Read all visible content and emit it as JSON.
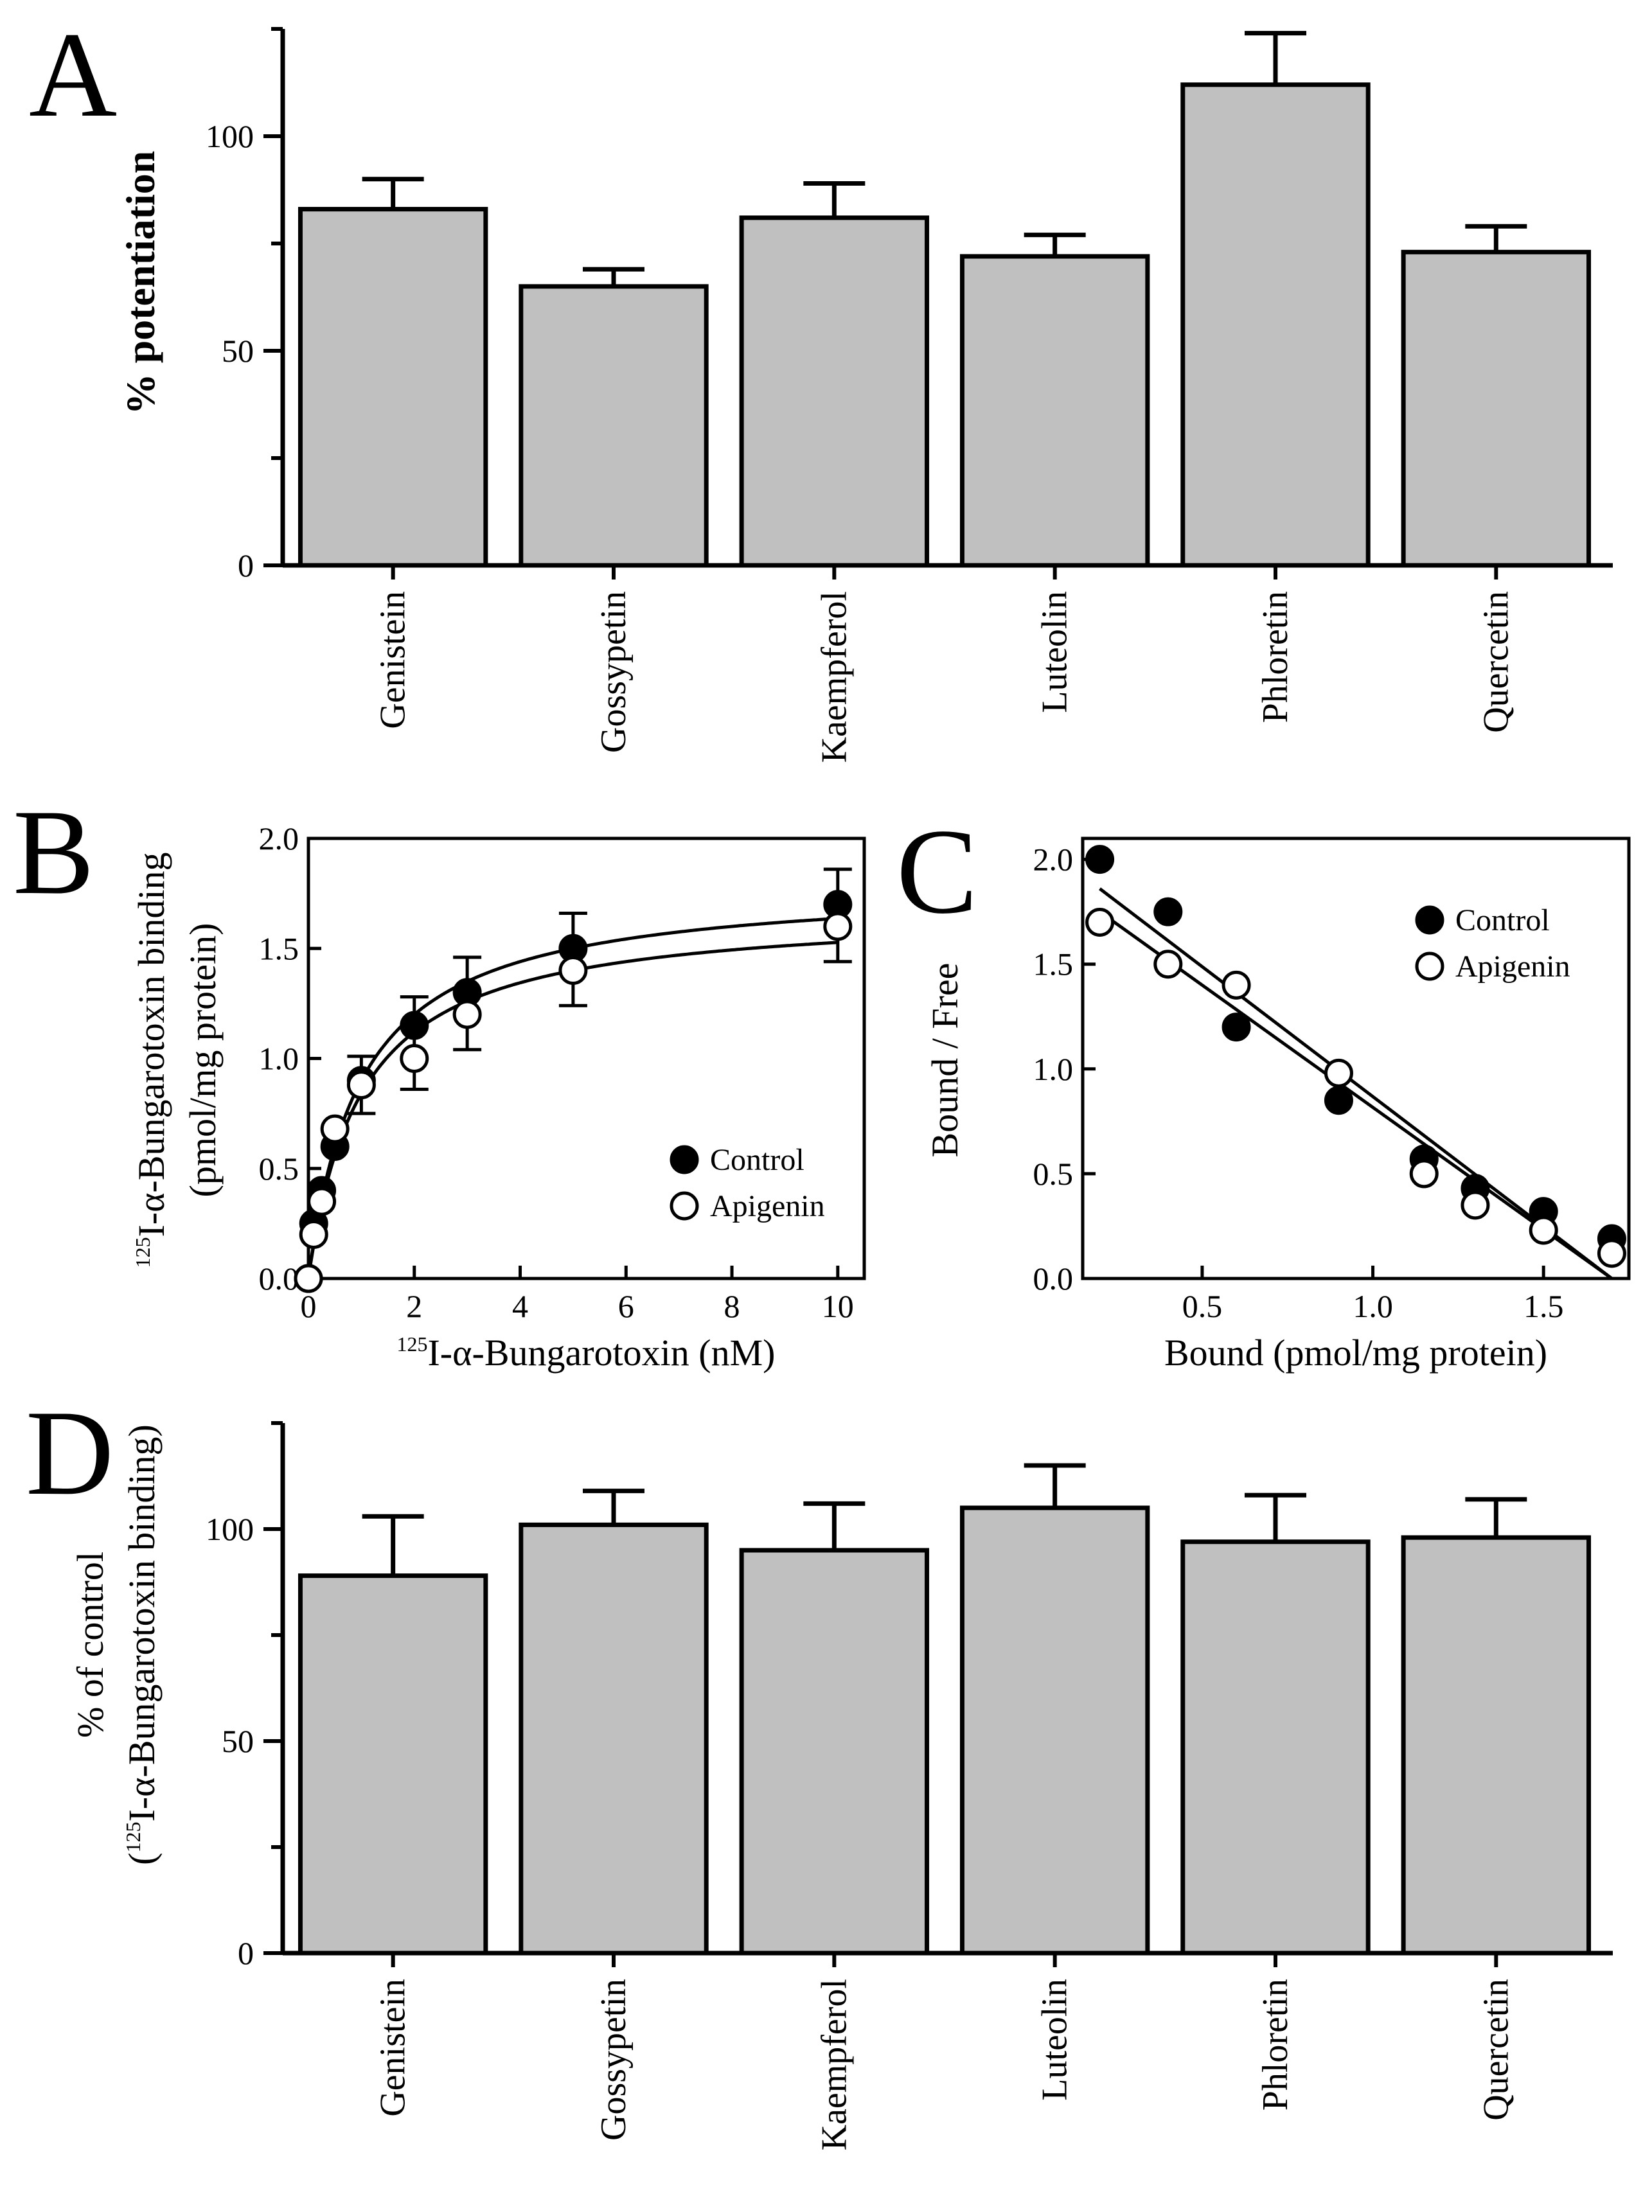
{
  "chart_data": [
    {
      "panel": "A",
      "type": "bar",
      "categories": [
        "Genistein",
        "Gossypetin",
        "Kaempferol",
        "Luteolin",
        "Phloretin",
        "Quercetin"
      ],
      "values": [
        83,
        65,
        81,
        72,
        112,
        73
      ],
      "errors": [
        7,
        4,
        8,
        5,
        12,
        6
      ],
      "ylabel": "% potentiation",
      "ylim": [
        0,
        125
      ],
      "yticks": [
        0,
        50,
        100
      ],
      "bar_color": "#c0c0c0"
    },
    {
      "panel": "B",
      "type": "scatter",
      "xlabel_sup": "125",
      "xlabel": "I-α-Bungarotoxin (nM)",
      "ylabel_sup": "125",
      "ylabel_line1": "I-α-Bungarotoxin binding",
      "ylabel_line2": "(pmol/mg protein)",
      "xlim": [
        0,
        10.5
      ],
      "ylim": [
        0,
        2.0
      ],
      "xticks": [
        "0",
        "2",
        "4",
        "6",
        "8",
        "10"
      ],
      "yticks": [
        "0.0",
        "0.5",
        "1.0",
        "1.5",
        "2.0"
      ],
      "legend_position": "lower-right",
      "series": [
        {
          "name": "Control",
          "marker": "filled-circle",
          "x": [
            0,
            0.1,
            0.25,
            0.5,
            1,
            2,
            3,
            5,
            10
          ],
          "y": [
            0,
            0.25,
            0.4,
            0.6,
            0.9,
            1.15,
            1.3,
            1.5,
            1.7
          ],
          "fit": {
            "model": "saturation",
            "bmax": 1.8,
            "kd": 1.0
          }
        },
        {
          "name": "Apigenin",
          "marker": "open-circle",
          "x": [
            0,
            0.1,
            0.25,
            0.5,
            1,
            2,
            3,
            5,
            10
          ],
          "y": [
            0,
            0.2,
            0.35,
            0.68,
            0.88,
            1.0,
            1.2,
            1.4,
            1.6
          ],
          "fit": {
            "model": "saturation",
            "bmax": 1.68,
            "kd": 1.0
          }
        }
      ],
      "error_bars": [
        {
          "x": 1,
          "y": 0.88,
          "err": 0.13
        },
        {
          "x": 2,
          "y": 1.07,
          "err": 0.21
        },
        {
          "x": 3,
          "y": 1.25,
          "err": 0.21
        },
        {
          "x": 5,
          "y": 1.45,
          "err": 0.21
        },
        {
          "x": 10,
          "y": 1.65,
          "err": 0.21
        }
      ]
    },
    {
      "panel": "C",
      "type": "scatter",
      "xlabel": "Bound (pmol/mg protein)",
      "ylabel": "Bound / Free",
      "xlim": [
        0.15,
        1.75
      ],
      "ylim": [
        0,
        2.1
      ],
      "xticks": [
        "0.5",
        "1.0",
        "1.5"
      ],
      "yticks": [
        "0.0",
        "0.5",
        "1.0",
        "1.5",
        "2.0"
      ],
      "legend_position": "top-right",
      "series": [
        {
          "name": "Control",
          "marker": "filled-circle",
          "x": [
            0.2,
            0.4,
            0.6,
            0.9,
            1.15,
            1.3,
            1.5,
            1.7
          ],
          "y": [
            2.0,
            1.75,
            1.2,
            0.85,
            0.57,
            0.43,
            0.32,
            0.19
          ],
          "fit_line": {
            "x1": 0.2,
            "y1": 1.86,
            "x2": 1.7,
            "y2": 0
          }
        },
        {
          "name": "Apigenin",
          "marker": "open-circle",
          "x": [
            0.2,
            0.4,
            0.6,
            0.9,
            1.15,
            1.3,
            1.5,
            1.7
          ],
          "y": [
            1.7,
            1.5,
            1.4,
            0.98,
            0.5,
            0.35,
            0.23,
            0.12
          ],
          "fit_line": {
            "x1": 0.2,
            "y1": 1.75,
            "x2": 1.7,
            "y2": 0
          }
        }
      ]
    },
    {
      "panel": "D",
      "type": "bar",
      "categories": [
        "Genistein",
        "Gossypetin",
        "Kaempferol",
        "Luteolin",
        "Phloretin",
        "Quercetin"
      ],
      "values": [
        89,
        101,
        95,
        105,
        97,
        98
      ],
      "errors": [
        14,
        8,
        11,
        10,
        11,
        9
      ],
      "ylabel_line1": "% of control",
      "ylabel_line2_prefix": "(",
      "ylabel_sup": "125",
      "ylabel_line2": "I-α-Bungarotoxin binding)",
      "ylim": [
        0,
        125
      ],
      "yticks": [
        0,
        50,
        100
      ],
      "bar_color": "#c0c0c0"
    }
  ]
}
